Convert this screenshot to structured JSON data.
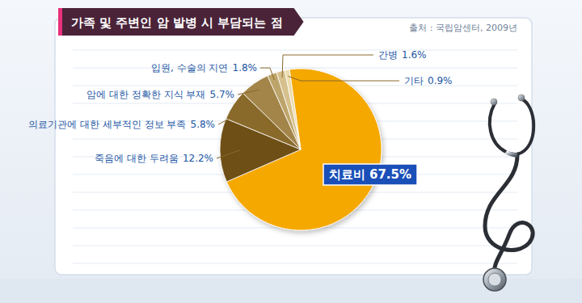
{
  "chart_data": {
    "type": "pie",
    "title": "가족 및 주변인 암 발병 시 부담되는 점",
    "subtitle": "출처 : 국립암센터, 2009년",
    "categories": [
      "치료비",
      "죽음에 대한 두려움",
      "의료기관에 대한 세부적인 정보 부족",
      "암에 대한 정확한 지식 부재",
      "입원, 수술의 지연",
      "간병",
      "기타"
    ],
    "values": [
      67.5,
      12.2,
      5.8,
      5.7,
      1.8,
      1.6,
      0.9
    ],
    "value_labels": [
      "67.5%",
      "12.2%",
      "5.8%",
      "5.7%",
      "1.8%",
      "1.6%",
      "0.9%"
    ],
    "colors": [
      "#f5a800",
      "#6e4f16",
      "#8a6a2c",
      "#a3854a",
      "#bda46a",
      "#d6c08c",
      "#ecdcae"
    ],
    "data_labels": true
  }
}
